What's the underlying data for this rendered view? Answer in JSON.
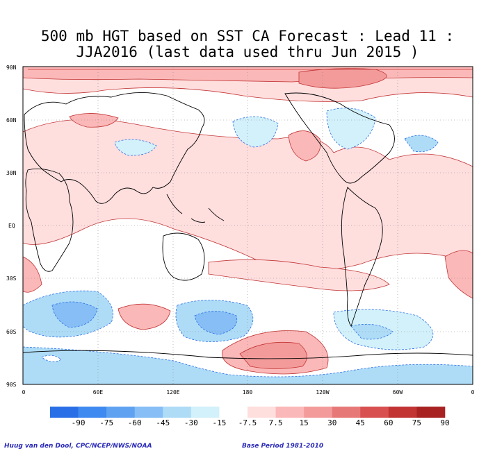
{
  "title": {
    "line1": "500 mb HGT based on SST CA Forecast : Lead 11 :",
    "line2": "JJA2016 (last data used thru Jun 2015 )"
  },
  "axes": {
    "y_ticks": [
      "90N",
      "60N",
      "30N",
      "EQ",
      "30S",
      "60S",
      "90S"
    ],
    "x_ticks": [
      "0",
      "60E",
      "120E",
      "180",
      "120W",
      "60W",
      "0"
    ]
  },
  "colorbar": {
    "labels": [
      "-90",
      "-75",
      "-60",
      "-45",
      "-30",
      "-15",
      "-7.5",
      "7.5",
      "15",
      "30",
      "45",
      "60",
      "75",
      "90"
    ],
    "colors": [
      "#2b6fe6",
      "#3f8af0",
      "#5fa2f2",
      "#86bef5",
      "#aedcf7",
      "#d2f1fa",
      "#ffffff",
      "#ffdede",
      "#fbb8b8",
      "#f39b9b",
      "#e77878",
      "#d85050",
      "#c23434",
      "#a82222"
    ]
  },
  "credits": {
    "left": "Huug van den Dool, CPC/NCEP/NWS/NOAA",
    "right": "Base Period 1981-2010"
  }
}
